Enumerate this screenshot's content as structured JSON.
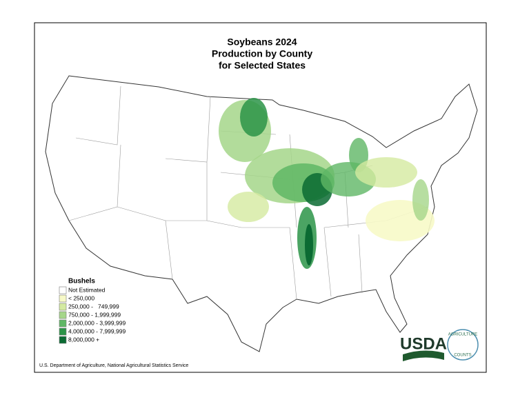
{
  "title": [
    "Soybeans 2024",
    "Production by County",
    "for Selected States"
  ],
  "legend": {
    "title": "Bushels",
    "items": [
      {
        "label": "Not Estimated",
        "color": "#ffffff"
      },
      {
        "label": "< 250,000",
        "color": "#f7f9c8"
      },
      {
        "label": "250,000 -   749,999",
        "color": "#d4eaa0"
      },
      {
        "label": "750,000 - 1,999,999",
        "color": "#a5d68a"
      },
      {
        "label": "2,000,000 - 3,999,999",
        "color": "#5fb765"
      },
      {
        "label": "4,000,000 - 7,999,999",
        "color": "#2b9448"
      },
      {
        "label": "8,000,000 +",
        "color": "#0b6b33"
      }
    ]
  },
  "source": "U.S. Department of Agriculture, National Agricultural Statistics Service",
  "logos": {
    "usda": "USDA",
    "counts_top": "AGRICULTURE",
    "counts_bottom": "COUNTS"
  }
}
